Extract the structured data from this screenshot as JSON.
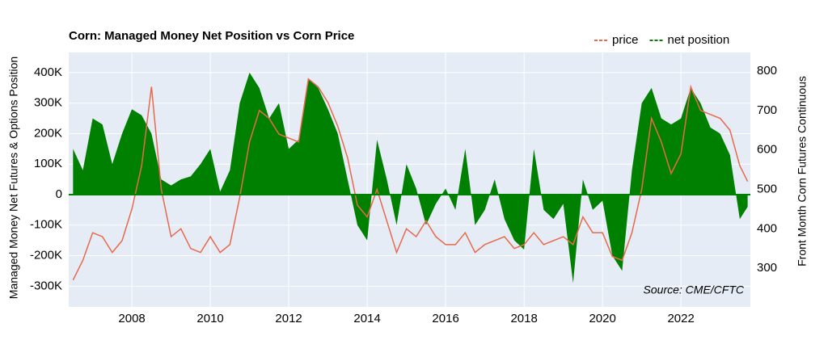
{
  "chart_data": {
    "type": "area-line",
    "title": "Corn: Managed Money Net Position vs Corn Price",
    "y_label": "Managed Money Net Futures & Options Position",
    "y2_label": "Front Month Corn Futures Continuous",
    "annotation": "Source: CME/CFTC",
    "x": [
      2006.5,
      2006.75,
      2007,
      2007.25,
      2007.5,
      2007.75,
      2008,
      2008.25,
      2008.5,
      2008.75,
      2009,
      2009.25,
      2009.5,
      2009.75,
      2010,
      2010.25,
      2010.5,
      2010.75,
      2011,
      2011.25,
      2011.5,
      2011.75,
      2012,
      2012.25,
      2012.5,
      2012.75,
      2013,
      2013.25,
      2013.5,
      2013.75,
      2014,
      2014.25,
      2014.5,
      2014.75,
      2015,
      2015.25,
      2015.5,
      2015.75,
      2016,
      2016.25,
      2016.5,
      2016.75,
      2017,
      2017.25,
      2017.5,
      2017.75,
      2018,
      2018.25,
      2018.5,
      2018.75,
      2019,
      2019.25,
      2019.5,
      2019.75,
      2020,
      2020.25,
      2020.5,
      2020.75,
      2021,
      2021.25,
      2021.5,
      2021.75,
      2022,
      2022.25,
      2022.5,
      2022.75,
      2023,
      2023.25,
      2023.5,
      2023.7
    ],
    "series": [
      {
        "name": "net position",
        "color": "#008000",
        "axis": "y",
        "values": [
          150000,
          80000,
          250000,
          230000,
          100000,
          200000,
          280000,
          260000,
          200000,
          50000,
          30000,
          50000,
          60000,
          100000,
          150000,
          10000,
          80000,
          300000,
          400000,
          350000,
          250000,
          300000,
          150000,
          180000,
          380000,
          350000,
          280000,
          200000,
          50000,
          -100000,
          -150000,
          180000,
          50000,
          -100000,
          100000,
          20000,
          -100000,
          -30000,
          20000,
          -50000,
          150000,
          -100000,
          -50000,
          50000,
          -80000,
          -150000,
          -180000,
          150000,
          -50000,
          -80000,
          -30000,
          -290000,
          50000,
          -50000,
          -20000,
          -200000,
          -250000,
          80000,
          300000,
          350000,
          250000,
          230000,
          250000,
          350000,
          300000,
          220000,
          200000,
          130000,
          -80000,
          -40000
        ]
      },
      {
        "name": "price",
        "color": "#e8694a",
        "axis": "y2",
        "values": [
          270,
          320,
          390,
          380,
          340,
          370,
          450,
          560,
          760,
          500,
          380,
          400,
          350,
          340,
          380,
          340,
          360,
          480,
          620,
          700,
          680,
          640,
          630,
          620,
          780,
          760,
          720,
          660,
          580,
          460,
          430,
          500,
          420,
          340,
          400,
          380,
          420,
          380,
          360,
          360,
          390,
          340,
          360,
          370,
          380,
          350,
          360,
          390,
          360,
          370,
          380,
          360,
          430,
          390,
          390,
          330,
          320,
          390,
          500,
          680,
          620,
          540,
          590,
          760,
          700,
          690,
          680,
          650,
          560,
          520
        ]
      }
    ],
    "xlim": [
      2006.39,
      2023.77
    ],
    "xticks": [
      2008,
      2010,
      2012,
      2014,
      2016,
      2018,
      2020,
      2022
    ],
    "ylim": [
      -368000,
      466000
    ],
    "yticks": [
      {
        "value": -300000,
        "label": "-300K"
      },
      {
        "value": -200000,
        "label": "-200K"
      },
      {
        "value": -100000,
        "label": "-100K"
      },
      0,
      {
        "value": 100000,
        "label": "100K"
      },
      {
        "value": 200000,
        "label": "200K"
      },
      {
        "value": 300000,
        "label": "300K"
      },
      {
        "value": 400000,
        "label": "400K"
      }
    ],
    "y2lim": [
      202,
      847
    ],
    "y2ticks": [
      300,
      400,
      500,
      600,
      700,
      800
    ],
    "grid": true
  }
}
